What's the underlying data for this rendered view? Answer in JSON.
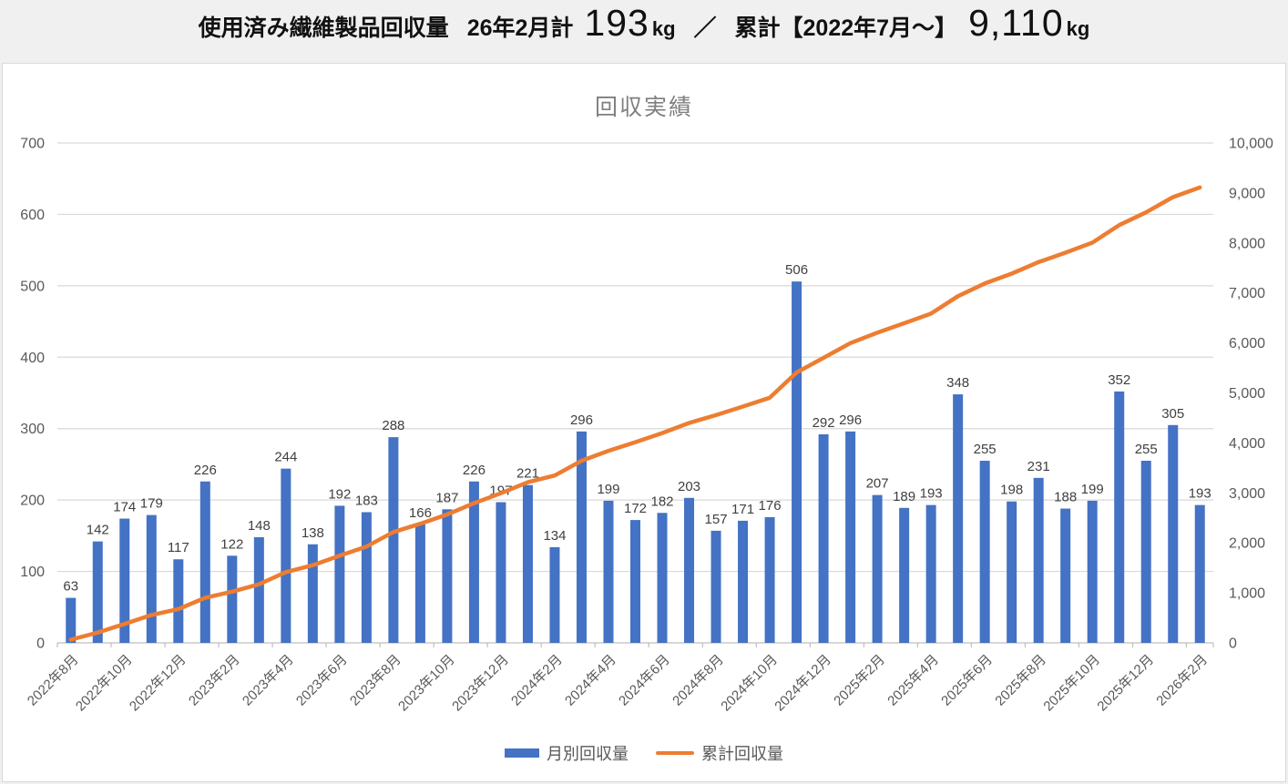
{
  "header": {
    "title_prefix": "使用済み繊維製品回収量",
    "month_label": "26年2月計",
    "month_value": "193",
    "month_unit": "kg",
    "separator": "／",
    "cumulative_label": "累計【2022年7月～】",
    "cumulative_value": "9,110",
    "cumulative_unit": "kg"
  },
  "chart_data": {
    "type": "combo-bar-line",
    "title": "回収実績",
    "grid": true,
    "legend_position": "bottom",
    "categories": [
      "2022年8月",
      "2022年9月",
      "2022年10月",
      "2022年11月",
      "2022年12月",
      "2023年1月",
      "2023年2月",
      "2023年3月",
      "2023年4月",
      "2023年5月",
      "2023年6月",
      "2023年7月",
      "2023年8月",
      "2023年9月",
      "2023年10月",
      "2023年11月",
      "2023年12月",
      "2024年1月",
      "2024年2月",
      "2024年3月",
      "2024年4月",
      "2024年5月",
      "2024年6月",
      "2024年7月",
      "2024年8月",
      "2024年9月",
      "2024年10月",
      "2024年11月",
      "2024年12月",
      "2025年1月",
      "2025年2月",
      "2025年3月",
      "2025年4月",
      "2025年5月",
      "2025年6月",
      "2025年7月",
      "2025年8月",
      "2025年9月",
      "2025年10月",
      "2025年11月",
      "2025年12月",
      "2026年1月",
      "2026年2月"
    ],
    "series": [
      {
        "name": "月別回収量",
        "type": "bar",
        "yaxis": "left",
        "color": "#4472C4",
        "data_labels": true,
        "values": [
          63,
          142,
          174,
          179,
          117,
          226,
          122,
          148,
          244,
          138,
          192,
          183,
          288,
          166,
          187,
          226,
          197,
          221,
          134,
          296,
          199,
          172,
          182,
          203,
          157,
          171,
          176,
          506,
          292,
          296,
          207,
          189,
          193,
          348,
          255,
          198,
          231,
          188,
          199,
          352,
          255,
          305,
          193
        ]
      },
      {
        "name": "累計回収量",
        "type": "line",
        "yaxis": "right",
        "color": "#ED7D31",
        "data_labels": false,
        "values": [
          63,
          205,
          379,
          558,
          675,
          901,
          1023,
          1171,
          1415,
          1553,
          1745,
          1928,
          2216,
          2382,
          2569,
          2795,
          2992,
          3213,
          3347,
          3643,
          3842,
          4014,
          4196,
          4399,
          4556,
          4727,
          4903,
          5409,
          5701,
          5997,
          6204,
          6393,
          6586,
          6934,
          7189,
          7387,
          7618,
          7806,
          8005,
          8357,
          8612,
          8917,
          9110
        ]
      }
    ],
    "left_axis": {
      "min": 0,
      "max": 700,
      "step": 100,
      "ticks": [
        "0",
        "100",
        "200",
        "300",
        "400",
        "500",
        "600",
        "700"
      ]
    },
    "right_axis": {
      "min": 0,
      "max": 10000,
      "step": 1000,
      "ticks": [
        "0",
        "1,000",
        "2,000",
        "3,000",
        "4,000",
        "5,000",
        "6,000",
        "7,000",
        "8,000",
        "9,000",
        "10,000"
      ]
    },
    "x_axis": {
      "tick_every": 2,
      "tick_labels": [
        "2022年8月",
        "2022年10月",
        "2022年12月",
        "2023年2月",
        "2023年4月",
        "2023年6月",
        "2023年8月",
        "2023年10月",
        "2023年12月",
        "2024年2月",
        "2024年4月",
        "2024年6月",
        "2024年8月",
        "2024年10月",
        "2024年12月",
        "2025年2月",
        "2025年4月",
        "2025年6月",
        "2025年8月",
        "2025年10月",
        "2025年12月",
        "2026年2月"
      ]
    },
    "style": {
      "gridline_color": "#d9d9d9",
      "axis_line_color": "#bfbfbf",
      "axis_text_color": "#595959",
      "data_label_color": "#404040"
    }
  }
}
